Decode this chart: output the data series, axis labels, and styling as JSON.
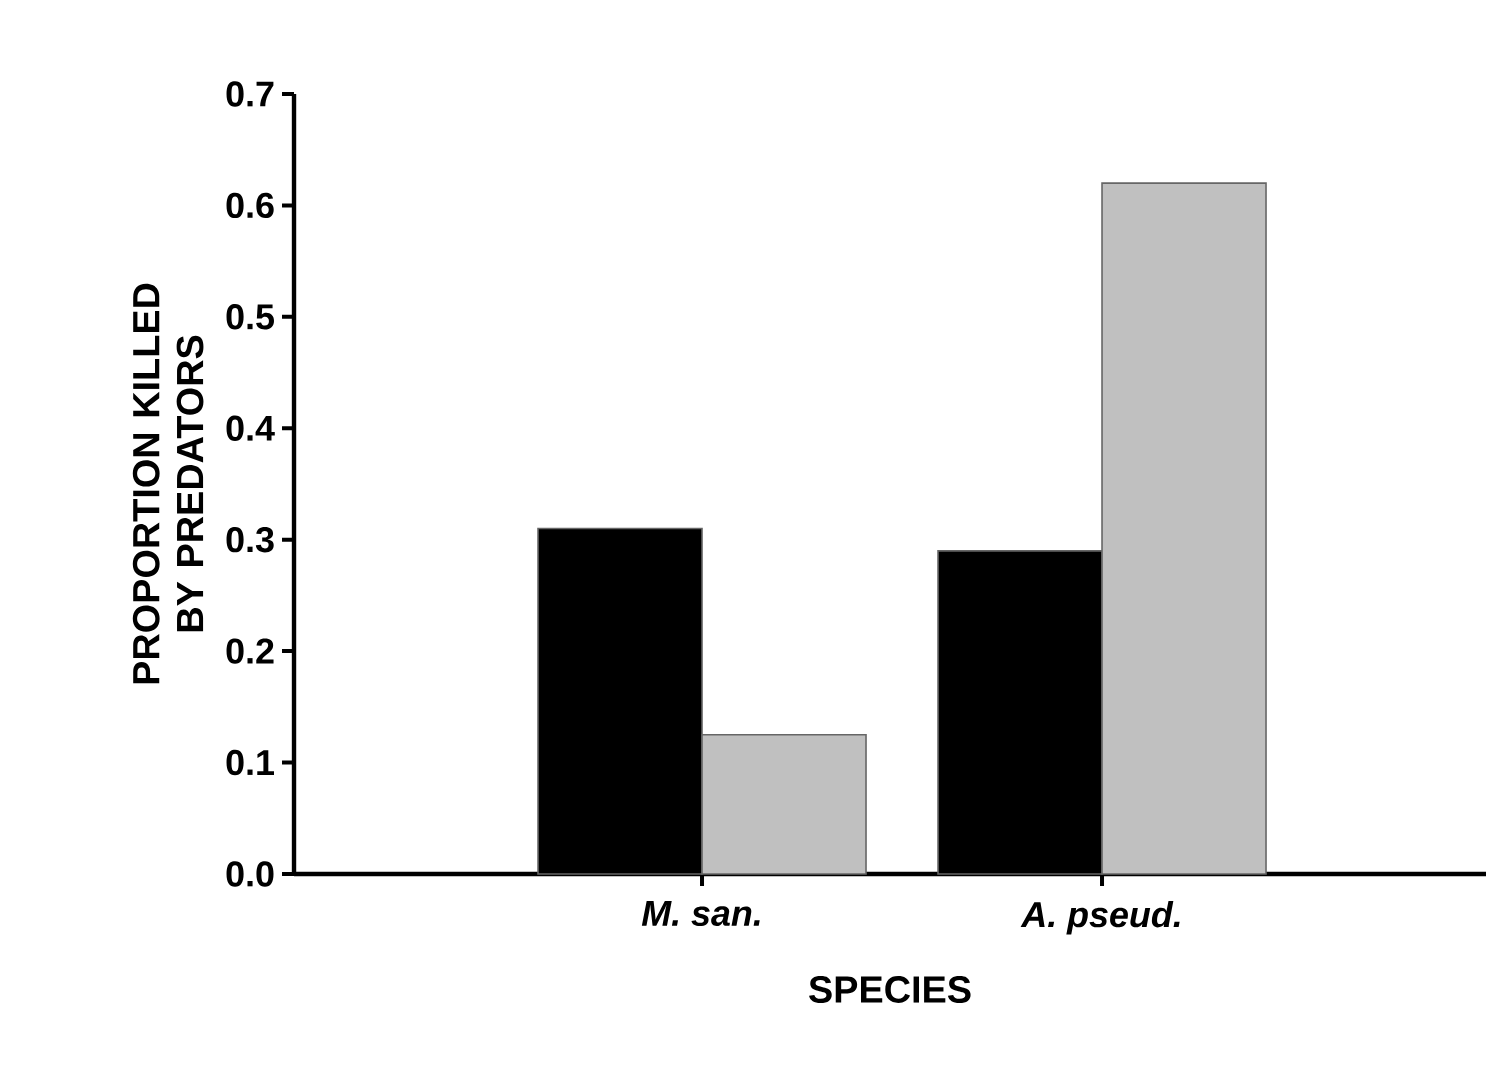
{
  "chart_data": {
    "type": "bar",
    "xlabel": "SPECIES",
    "ylabel": "PROPORTION KILLED BY PREDATORS",
    "categories": [
      "M. san.",
      "A. pseud."
    ],
    "series": [
      {
        "color": "#000000",
        "values": [
          0.31,
          0.29
        ]
      },
      {
        "color": "#c0c0c0",
        "values": [
          0.125,
          0.62
        ]
      }
    ],
    "ylim": [
      0,
      0.7
    ],
    "yticks": [
      {
        "value": 0,
        "label": "0.0"
      },
      0.1,
      0.2,
      0.3,
      0.4,
      0.5,
      0.6,
      0.7
    ]
  }
}
